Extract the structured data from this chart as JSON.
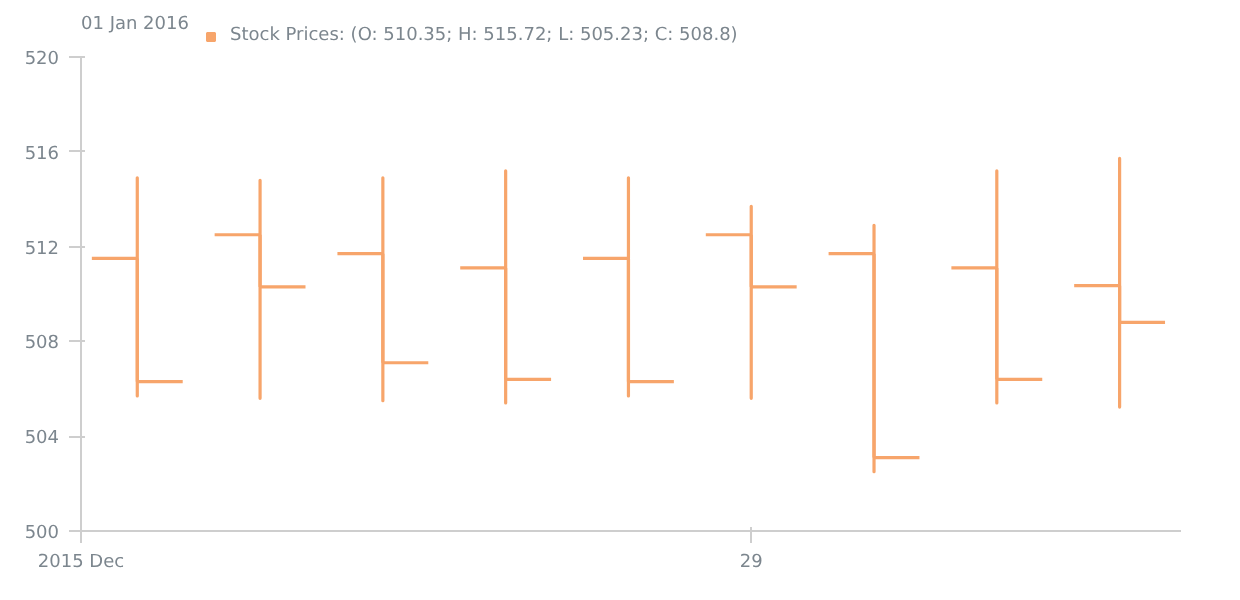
{
  "chart_data": [
    {
      "type": "candlestick",
      "legend_title": "01 Jan 2016",
      "legend": "top left",
      "x": [
        "2015-12-24",
        "2015-12-25",
        "2015-12-26",
        "2015-12-27",
        "2015-12-28",
        "2015-12-29",
        "2015-12-30",
        "2015-12-31",
        "2016-01-01"
      ],
      "series": [
        {
          "name": "Stock Prices: (O: 510.35; H: 515.72; L: 505.23; C: 508.8)",
          "color": "#f7a56b",
          "ohlc": [
            [
              511.5,
              514.9,
              505.7,
              506.3
            ],
            [
              512.5,
              514.8,
              505.6,
              510.3
            ],
            [
              511.7,
              514.9,
              505.5,
              507.1
            ],
            [
              511.1,
              515.2,
              505.4,
              506.4
            ],
            [
              511.5,
              514.9,
              505.7,
              506.3
            ],
            [
              512.5,
              513.7,
              505.6,
              510.3
            ],
            [
              511.7,
              512.9,
              502.5,
              503.1
            ],
            [
              511.1,
              515.2,
              505.4,
              506.4
            ],
            [
              510.35,
              515.72,
              505.23,
              508.8
            ]
          ]
        }
      ],
      "xlim": [
        "2015-12-23T13:00",
        "2016-01-01T12:00"
      ],
      "xticks": [
        {
          "value": "2015-12-23T13:00",
          "label": "2015 Dec"
        },
        {
          "value": "2015-12-29",
          "label": "29"
        }
      ],
      "ylim": [
        500,
        520
      ],
      "yticks": [
        500,
        504,
        508,
        512,
        516,
        520
      ],
      "grid": false
    }
  ]
}
